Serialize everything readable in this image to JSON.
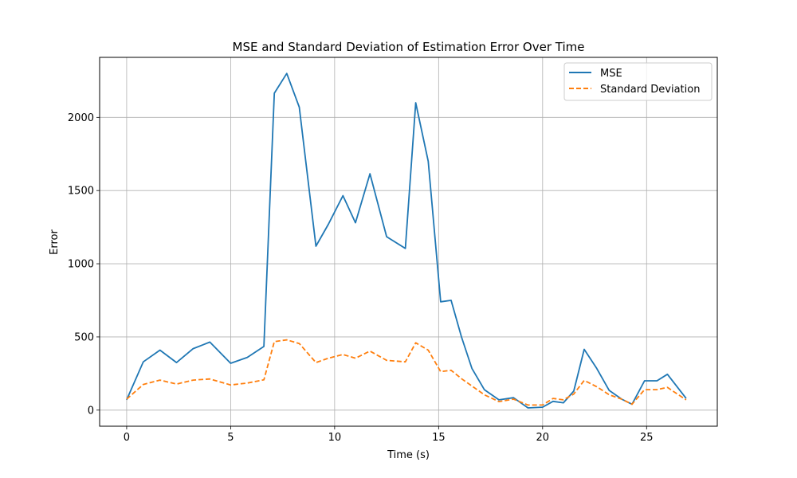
{
  "chart_data": {
    "type": "line",
    "title": "MSE and Standard Deviation of Estimation Error Over Time",
    "xlabel": "Time (s)",
    "ylabel": "Error",
    "xlim": [
      -1.3,
      28.4
    ],
    "ylim": [
      -110,
      2410
    ],
    "xticks": [
      0,
      5,
      10,
      15,
      20,
      25
    ],
    "yticks": [
      0,
      500,
      1000,
      1500,
      2000
    ],
    "grid": true,
    "legend_position": "top-right",
    "series": [
      {
        "name": "MSE",
        "color": "#1f77b4",
        "style": "solid",
        "x": [
          0,
          0.8,
          1.6,
          2.4,
          3.2,
          4.0,
          5.0,
          5.8,
          6.6,
          7.1,
          7.7,
          8.3,
          9.1,
          9.7,
          10.4,
          11.0,
          11.7,
          12.5,
          13.4,
          13.9,
          14.5,
          15.1,
          15.6,
          16.1,
          16.6,
          17.2,
          17.9,
          18.6,
          19.3,
          20.0,
          20.5,
          21.0,
          21.5,
          22.0,
          22.6,
          23.2,
          23.8,
          24.3,
          24.9,
          25.5,
          26.0,
          26.9
        ],
        "y": [
          70,
          330,
          410,
          325,
          420,
          465,
          320,
          360,
          435,
          2165,
          2300,
          2070,
          1120,
          1270,
          1465,
          1280,
          1615,
          1185,
          1105,
          2100,
          1700,
          740,
          750,
          500,
          285,
          140,
          70,
          85,
          15,
          20,
          60,
          50,
          130,
          415,
          285,
          135,
          75,
          40,
          200,
          200,
          245,
          80
        ]
      },
      {
        "name": "Standard Deviation",
        "color": "#ff7f0e",
        "style": "dashed",
        "x": [
          0,
          0.8,
          1.6,
          2.4,
          3.2,
          4.0,
          5.0,
          5.8,
          6.6,
          7.1,
          7.7,
          8.3,
          9.1,
          9.7,
          10.4,
          11.0,
          11.7,
          12.5,
          13.4,
          13.9,
          14.5,
          15.1,
          15.6,
          16.1,
          16.6,
          17.2,
          17.9,
          18.6,
          19.3,
          20.0,
          20.5,
          21.0,
          21.5,
          22.0,
          22.6,
          23.2,
          23.8,
          24.3,
          24.9,
          25.5,
          26.0,
          26.9
        ],
        "y": [
          75,
          175,
          205,
          178,
          205,
          213,
          172,
          185,
          207,
          468,
          480,
          455,
          325,
          355,
          380,
          355,
          403,
          340,
          330,
          460,
          410,
          263,
          272,
          215,
          165,
          105,
          58,
          75,
          35,
          35,
          80,
          70,
          110,
          203,
          160,
          105,
          75,
          40,
          140,
          140,
          155,
          70
        ]
      }
    ]
  }
}
